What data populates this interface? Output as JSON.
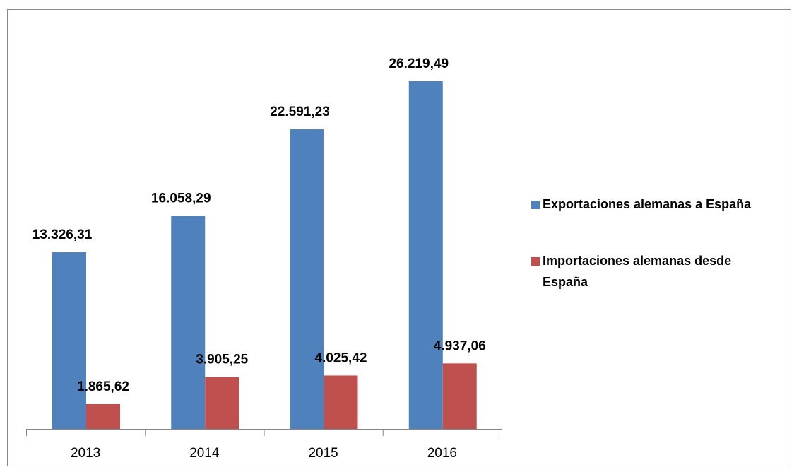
{
  "chart_data": {
    "type": "bar",
    "categories": [
      "2013",
      "2014",
      "2015",
      "2016"
    ],
    "series": [
      {
        "name": "Exportaciones alemanas a España",
        "color": "#4f81bd",
        "values": [
          13326.31,
          16058.29,
          22591.23,
          26219.49
        ],
        "value_labels": [
          "13.326,31",
          "16.058,29",
          "22.591,23",
          "26.219,49"
        ]
      },
      {
        "name": "Importaciones alemanas desde España",
        "color": "#c0504d",
        "values": [
          1865.62,
          3905.25,
          4025.42,
          4937.06
        ],
        "value_labels": [
          "1.865,62",
          "3.905,25",
          "4.025,42",
          "4.937,06"
        ]
      }
    ],
    "ylim": [
      0,
      30000
    ],
    "legend": "right"
  }
}
